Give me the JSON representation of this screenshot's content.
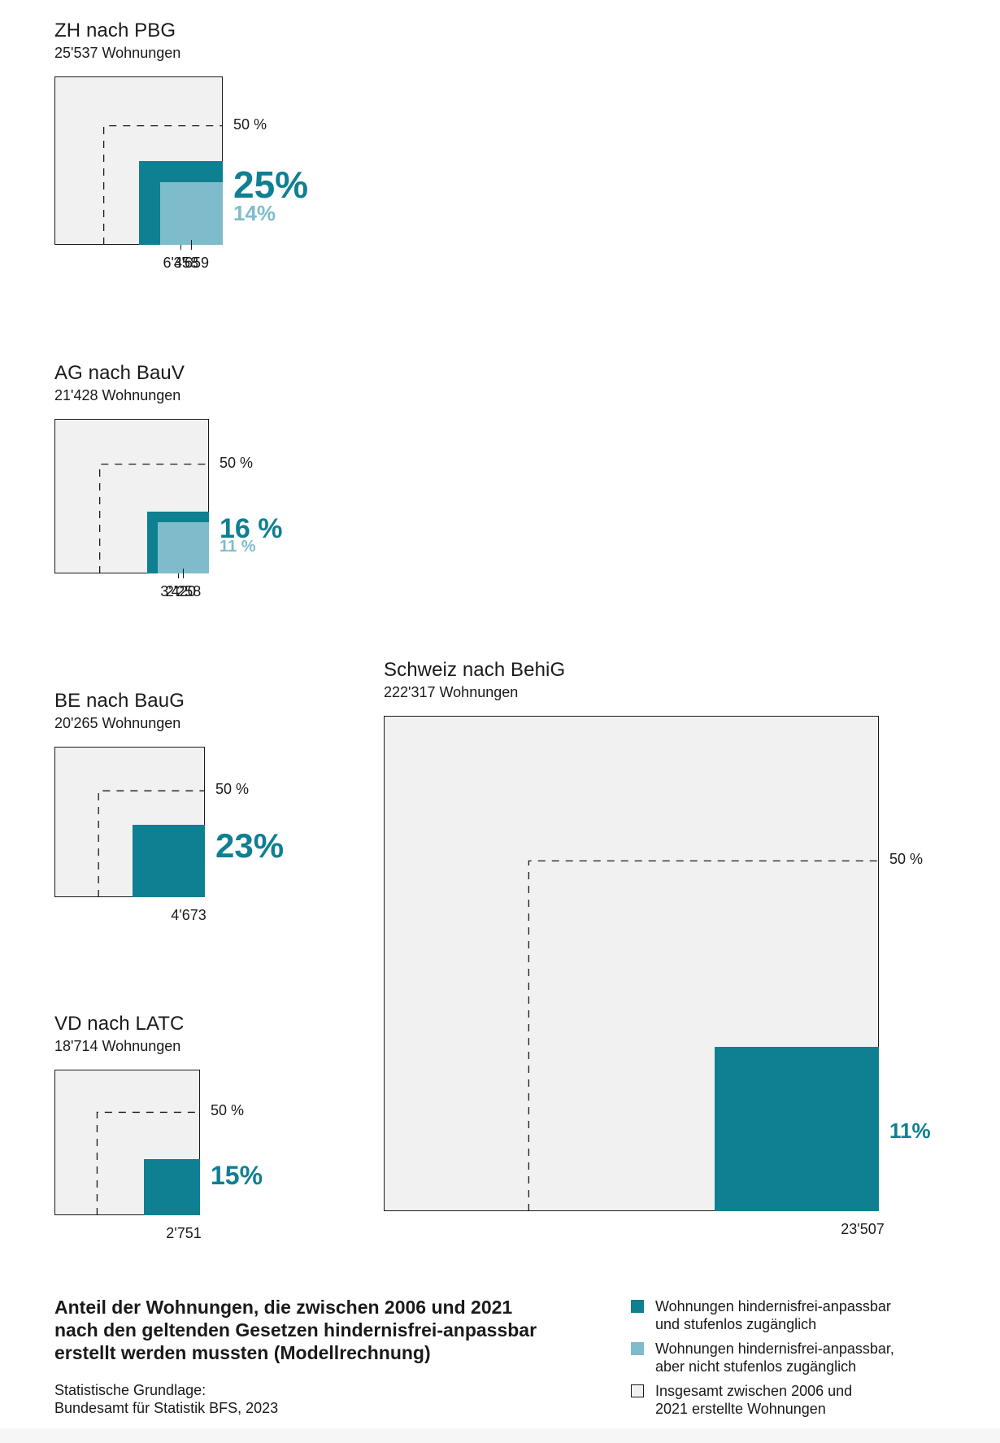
{
  "colors": {
    "primary": "#0f7f92",
    "secondary": "#7fbccb",
    "background_square": "#f1f1f1",
    "border": "#1a1a1a"
  },
  "chart_data": [
    {
      "type": "nested-square",
      "title": "ZH nach PBG",
      "subtitle": "25'537 Wohnungen",
      "reference_label": "50 %",
      "series": [
        {
          "name": "Wohnungen hindernisfrei-anpassbar und stufenlos zugänglich",
          "percent": 25,
          "percent_label": "25%",
          "count_label": "6'458"
        },
        {
          "name": "Wohnungen hindernisfrei-anpassbar, aber nicht stufenlos zugänglich",
          "percent": 14,
          "percent_label": "14%",
          "count_label": "3'659"
        }
      ]
    },
    {
      "type": "nested-square",
      "title": "AG nach BauV",
      "subtitle": "21'428 Wohnungen",
      "reference_label": "50 %",
      "series": [
        {
          "name": "Wohnungen hindernisfrei-anpassbar und stufenlos zugänglich",
          "percent": 16,
          "percent_label": "16 %",
          "count_label": "3'420"
        },
        {
          "name": "Wohnungen hindernisfrei-anpassbar, aber nicht stufenlos zugänglich",
          "percent": 11,
          "percent_label": "11 %",
          "count_label": "2'258"
        }
      ]
    },
    {
      "type": "nested-square",
      "title": "BE nach BauG",
      "subtitle": "20'265 Wohnungen",
      "reference_label": "50 %",
      "series": [
        {
          "name": "Wohnungen hindernisfrei-anpassbar und stufenlos zugänglich",
          "percent": 23,
          "percent_label": "23%",
          "count_label": "4'673"
        }
      ]
    },
    {
      "type": "nested-square",
      "title": "VD nach LATC",
      "subtitle": "18'714 Wohnungen",
      "reference_label": "50 %",
      "series": [
        {
          "name": "Wohnungen hindernisfrei-anpassbar und stufenlos zugänglich",
          "percent": 15,
          "percent_label": "15%",
          "count_label": "2'751"
        }
      ]
    },
    {
      "type": "nested-square",
      "title": "Schweiz nach BehiG",
      "subtitle": "222'317 Wohnungen",
      "reference_label": "50 %",
      "series": [
        {
          "name": "Wohnungen hindernisfrei-anpassbar und stufenlos zugänglich",
          "percent": 11,
          "percent_label": "11%",
          "count_label": "23'507"
        }
      ]
    }
  ],
  "footer": {
    "title": "Anteil der Wohnungen, die zwischen 2006 und 2021 nach den geltenden Gesetzen hindernisfrei-anpassbar erstellt werden mussten (Modellrechnung)",
    "source_line1": "Statistische Grundlage:",
    "source_line2": "Bundesamt für Statistik BFS, 2023"
  },
  "legend": [
    {
      "label": "Wohnungen hindernisfrei-anpassbar und stufenlos zugänglich",
      "swatch": "primary"
    },
    {
      "label": "Wohnungen hindernisfrei-anpassbar, aber nicht stufenlos zugänglich",
      "swatch": "secondary"
    },
    {
      "label": "Insgesamt zwischen 2006 und 2021 erstellte Wohnungen",
      "swatch": "background_square"
    }
  ]
}
